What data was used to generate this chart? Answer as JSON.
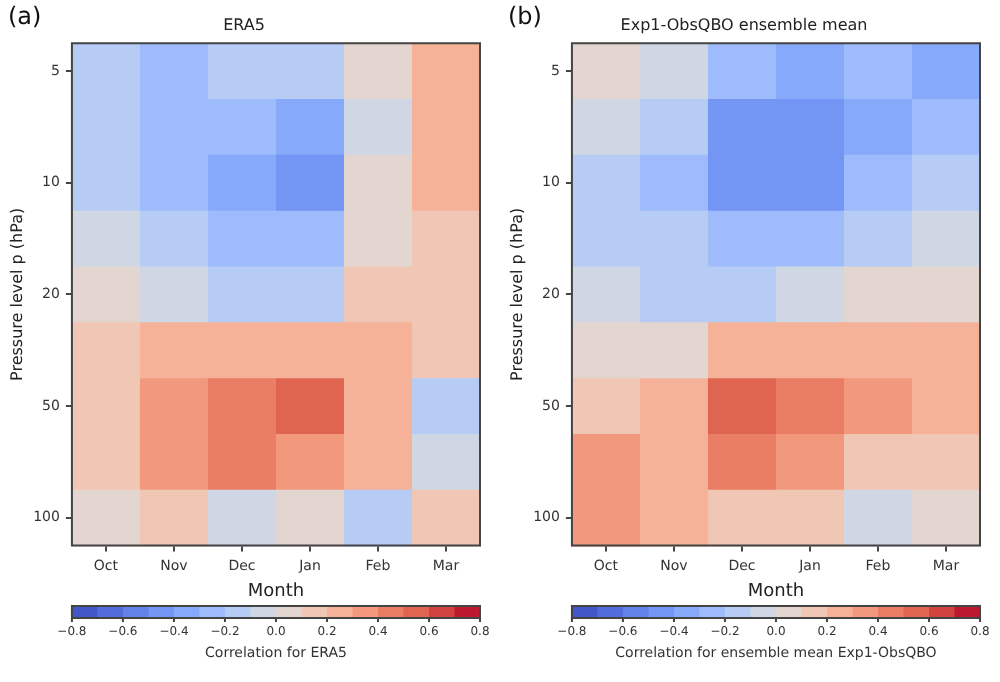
{
  "chart_data": [
    {
      "type": "heatmap",
      "title": "ERA5",
      "xlabel": "Month",
      "ylabel": "Pressure level p (hPa)",
      "clabel": "Correlation for ERA5",
      "annotations": [
        "(a)"
      ],
      "cticks": [
        -0.8,
        -0.6,
        -0.4,
        -0.2,
        {
          "value": 0,
          "label": "0.0"
        },
        0.2,
        0.4,
        0.6,
        0.8
      ],
      "categories": [
        "Oct",
        "Nov",
        "Dec",
        "Jan",
        "Feb",
        "Mar"
      ],
      "y_categories": [
        "5",
        null,
        "10",
        null,
        "20",
        null,
        "50",
        null,
        "100"
      ],
      "cells": [
        [
          -0.15,
          -0.25,
          -0.15,
          -0.2,
          0.0,
          0.2
        ],
        [
          -0.15,
          -0.3,
          -0.3,
          -0.35,
          -0.1,
          0.2
        ],
        [
          -0.15,
          -0.25,
          -0.35,
          -0.45,
          0.0,
          0.2
        ],
        [
          -0.05,
          -0.2,
          -0.3,
          -0.3,
          0.05,
          0.15
        ],
        [
          0.05,
          -0.05,
          -0.15,
          -0.15,
          0.1,
          0.15
        ],
        [
          0.15,
          0.25,
          0.2,
          0.2,
          0.25,
          0.1
        ],
        [
          0.15,
          0.35,
          0.45,
          0.5,
          0.2,
          -0.2
        ],
        [
          0.1,
          0.3,
          0.4,
          0.35,
          0.2,
          -0.1
        ],
        [
          0.05,
          0.1,
          -0.1,
          0.0,
          -0.15,
          0.1
        ]
      ],
      "clim": [
        -0.8,
        0.8
      ]
    },
    {
      "type": "heatmap",
      "title": "Exp1-ObsQBO ensemble mean",
      "xlabel": "Month",
      "ylabel": "Pressure level p (hPa)",
      "clabel": "Correlation for ensemble mean Exp1-ObsQBO",
      "annotations": [
        "(b)"
      ],
      "categories": [
        "Oct",
        "Nov",
        "Dec",
        "Jan",
        "Feb",
        "Mar"
      ],
      "y_categories": [
        "5",
        null,
        "10",
        null,
        "20",
        null,
        "50",
        null,
        "100"
      ],
      "cells": [
        [
          0.0,
          -0.1,
          -0.3,
          -0.35,
          -0.3,
          -0.35
        ],
        [
          -0.05,
          -0.2,
          -0.45,
          -0.5,
          -0.35,
          -0.3
        ],
        [
          -0.15,
          -0.25,
          -0.45,
          -0.45,
          -0.25,
          -0.2
        ],
        [
          -0.15,
          -0.2,
          -0.3,
          -0.25,
          -0.15,
          -0.1
        ],
        [
          -0.1,
          -0.15,
          -0.15,
          -0.05,
          0.05,
          0.05
        ],
        [
          0.0,
          0.05,
          0.2,
          0.25,
          0.25,
          0.2
        ],
        [
          0.15,
          0.2,
          0.55,
          0.45,
          0.3,
          0.25
        ],
        [
          0.3,
          0.25,
          0.4,
          0.3,
          0.15,
          0.1
        ],
        [
          0.35,
          0.2,
          0.15,
          0.1,
          -0.1,
          0.0
        ]
      ],
      "clim": [
        -0.8,
        0.8
      ],
      "cticks": [
        -0.8,
        -0.6,
        -0.4,
        -0.2,
        {
          "value": 0,
          "label": "0.0"
        },
        0.2,
        0.4,
        0.6,
        0.8
      ]
    }
  ]
}
